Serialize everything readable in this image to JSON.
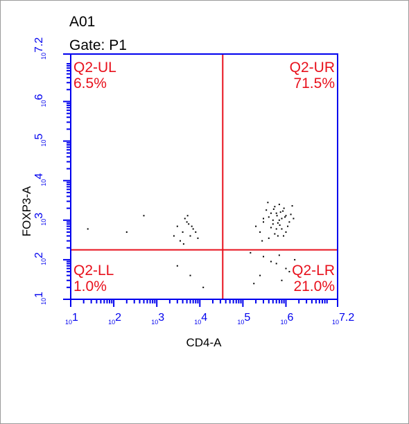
{
  "chart_data": {
    "type": "scatter",
    "title": "A01",
    "subtitle": "Gate: P1",
    "x_label": "CD4-A",
    "y_label": "FOXP3-A",
    "log_x": true,
    "log_y": true,
    "xlim": [
      10,
      15848932
    ],
    "ylim": [
      10,
      15848932
    ],
    "xticks": [
      {
        "value": 10,
        "label": "10",
        "exponent": "1"
      },
      {
        "value": 100,
        "label": "10",
        "exponent": "2"
      },
      {
        "value": 1000,
        "label": "10",
        "exponent": "3"
      },
      {
        "value": 10000,
        "label": "10",
        "exponent": "4"
      },
      {
        "value": 100000,
        "label": "10",
        "exponent": "5"
      },
      {
        "value": 1000000,
        "label": "10",
        "exponent": "6"
      },
      {
        "value": 15848932,
        "label": "10",
        "exponent": "7.2"
      }
    ],
    "yticks": [
      {
        "value": 10,
        "label": "10",
        "exponent": "1"
      },
      {
        "value": 100,
        "label": "10",
        "exponent": "2"
      },
      {
        "value": 1000,
        "label": "10",
        "exponent": "3"
      },
      {
        "value": 10000,
        "label": "10",
        "exponent": "4"
      },
      {
        "value": 100000,
        "label": "10",
        "exponent": "5"
      },
      {
        "value": 1000000,
        "label": "10",
        "exponent": "6"
      },
      {
        "value": 15848932,
        "label": "10",
        "exponent": "7.2"
      }
    ],
    "axis_color": "#0000ee",
    "gate_color": "#e8101c",
    "color": "#000000",
    "gates": {
      "x": 34000,
      "y": 178
    },
    "quadrants": {
      "names": [
        "Q2-UL",
        "Q2-UR",
        "Q2-LL",
        "Q2-LR"
      ],
      "values": [
        6.5,
        71.5,
        1.0,
        21.0
      ],
      "value_labels": [
        "6.5%",
        "71.5%",
        "1.0%",
        "21.0%"
      ]
    },
    "series": [
      {
        "name": "P1",
        "x": [
          200000,
          300000,
          400000,
          500000,
          600000,
          700000,
          800000,
          1000000,
          1200000,
          1500000,
          250000,
          350000,
          450000,
          550000,
          650000,
          750000,
          900000,
          1100000,
          1300000,
          400000,
          500000,
          600000,
          700000,
          800000,
          300000,
          450000,
          550000,
          650000,
          850000,
          1000000,
          380000,
          520000,
          720000,
          950000,
          1400000,
          280000,
          620000,
          880000,
          3000,
          4000,
          5000,
          6000,
          7000,
          3500,
          4500,
          5500,
          8000,
          2500,
          4200,
          6500,
          9000,
          5200,
          150000,
          300000,
          600000,
          1000000,
          1600000,
          250000,
          800000,
          450000,
          1200000,
          180000,
          700000,
          25,
          200,
          3000,
          6000,
          12000,
          500
        ],
        "y": [
          700,
          900,
          1200,
          800,
          1500,
          1000,
          600,
          1300,
          900,
          1100,
          500,
          1800,
          650,
          2200,
          400,
          1600,
          2000,
          700,
          1400,
          350,
          1000,
          600,
          2500,
          1100,
          1100,
          1500,
          450,
          850,
          1700,
          500,
          2800,
          1900,
          750,
          1200,
          2300,
          300,
          1300,
          400,
          700,
          500,
          900,
          400,
          600,
          300,
          1100,
          800,
          500,
          400,
          250,
          700,
          350,
          1300,
          150,
          120,
          80,
          60,
          100,
          40,
          30,
          90,
          50,
          25,
          130,
          600,
          500,
          70,
          40,
          20,
          1300
        ]
      }
    ]
  }
}
